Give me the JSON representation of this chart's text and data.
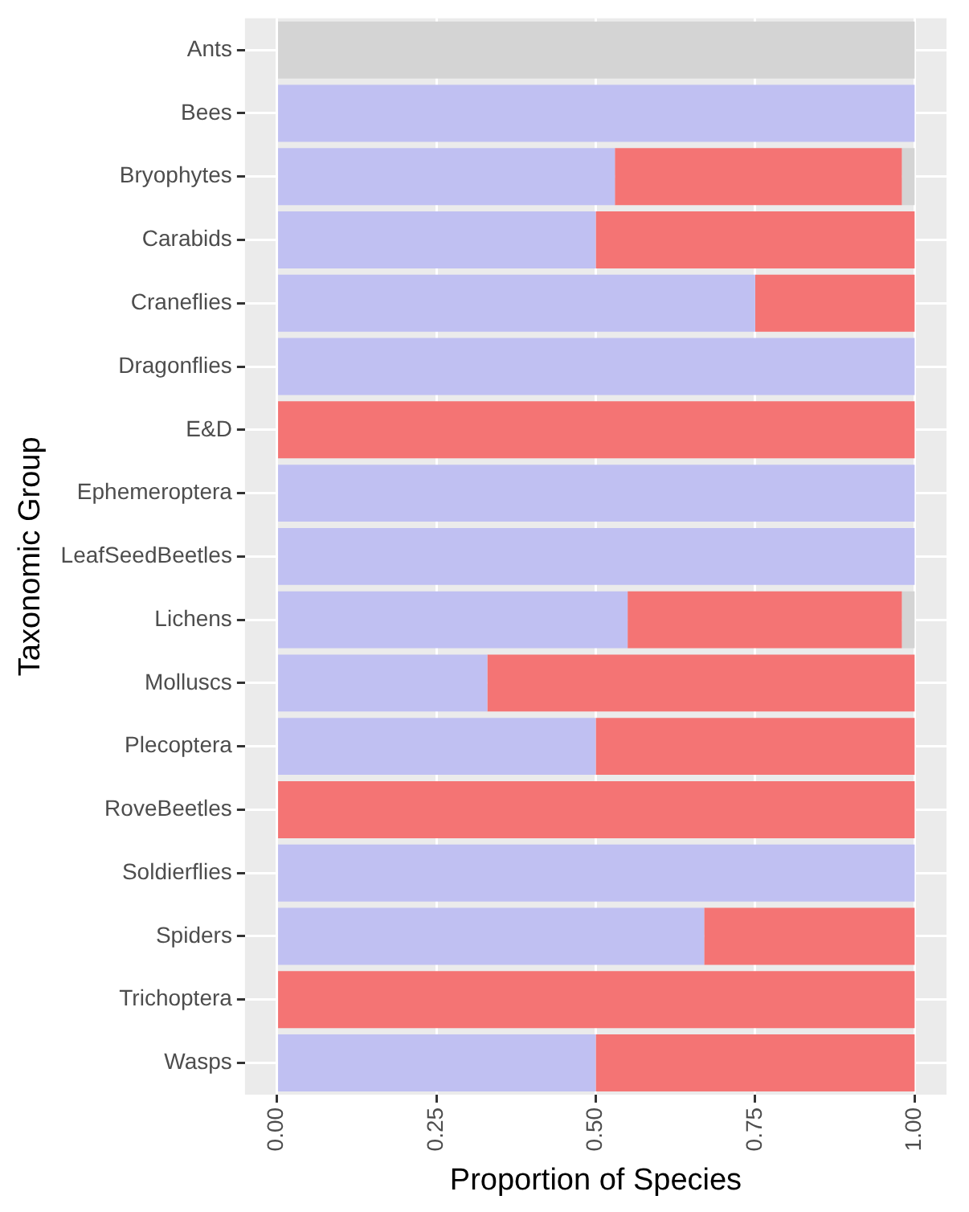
{
  "chart_data": {
    "type": "bar",
    "orientation": "horizontal",
    "stacked": true,
    "xlabel": "Proportion of Species",
    "ylabel": "Taxonomic Group",
    "categories": [
      "Ants",
      "Bees",
      "Bryophytes",
      "Carabids",
      "Craneflies",
      "Dragonflies",
      "E&D",
      "Ephemeroptera",
      "LeafSeedBeetles",
      "Lichens",
      "Molluscs",
      "Plecoptera",
      "RoveBeetles",
      "Soldierflies",
      "Spiders",
      "Trichoptera",
      "Wasps"
    ],
    "series": [
      {
        "color": "#c0c0f2",
        "values": [
          0,
          1,
          0.53,
          0.5,
          0.75,
          1,
          0,
          1,
          1,
          0.55,
          0.33,
          0.5,
          0,
          1,
          0.67,
          0,
          0.5
        ]
      },
      {
        "color": "#f47474",
        "values": [
          0,
          0,
          0.45,
          0.5,
          0.25,
          0,
          1,
          0,
          0,
          0.43,
          0.67,
          0.5,
          1,
          0,
          0.33,
          1,
          0.5
        ]
      },
      {
        "color": "#d4d4d4",
        "values": [
          1,
          0,
          0.02,
          0,
          0,
          0,
          0,
          0,
          0,
          0.02,
          0,
          0,
          0,
          0,
          0,
          0,
          0
        ]
      }
    ],
    "xlim": [
      -0.05,
      1.05
    ],
    "xticks": [
      {
        "value": 0,
        "label": "0.00"
      },
      {
        "value": 0.25,
        "label": "0.25"
      },
      {
        "value": 0.5,
        "label": "0.50"
      },
      {
        "value": 0.75,
        "label": "0.75"
      },
      {
        "value": 1,
        "label": "1.00"
      }
    ],
    "grid": true,
    "legend": false
  }
}
